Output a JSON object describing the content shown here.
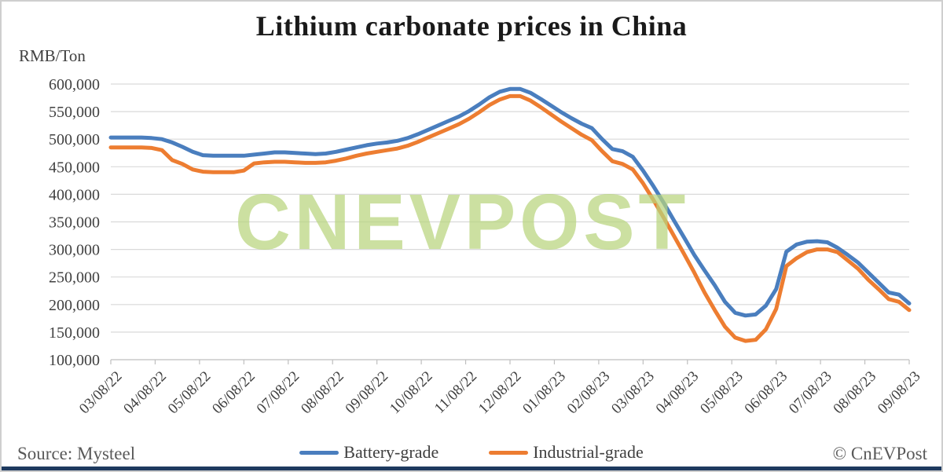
{
  "title": "Lithium carbonate prices in China",
  "y_axis_unit": "RMB/Ton",
  "watermark": "CNEVPOST",
  "source": "Source: Mysteel",
  "copyright": "© CnEVPost",
  "legend": [
    {
      "label": "Battery-grade",
      "color": "#4a7ebe"
    },
    {
      "label": "Industrial-grade",
      "color": "#ed7d31"
    }
  ],
  "colors": {
    "battery_line": "#4a7ebe",
    "industrial_line": "#ed7d31",
    "gridline": "#d9d9d9",
    "axis": "#bfbfbf",
    "watermark_green": "#b9d57e",
    "bottom_bar_navy": "#1e3a5f",
    "text_gray": "#404040"
  },
  "chart_data": {
    "type": "line",
    "title": "Lithium carbonate prices in China",
    "ylabel": "RMB/Ton",
    "xlabel": "",
    "grid": "horizontal",
    "legend_position": "bottom",
    "ylim": [
      100000,
      600000
    ],
    "y_tick_step": 50000,
    "y_tick_labels": [
      "600,000",
      "550,000",
      "500,000",
      "450,000",
      "400,000",
      "350,000",
      "300,000",
      "250,000",
      "200,000",
      "150,000",
      "100,000"
    ],
    "x_tick_labels": [
      "03/08/22",
      "04/08/22",
      "05/08/22",
      "06/08/22",
      "07/08/22",
      "08/08/22",
      "09/08/22",
      "10/08/22",
      "11/08/22",
      "12/08/22",
      "01/08/23",
      "02/08/23",
      "03/08/23",
      "04/08/23",
      "05/08/23",
      "06/08/23",
      "07/08/23",
      "08/08/23",
      "09/08/23"
    ],
    "x_frequency": "weekly",
    "series": [
      {
        "id": "battery-grade",
        "name": "Battery-grade",
        "color": "#4a7ebe",
        "values": [
          503000,
          503000,
          503000,
          503000,
          502000,
          500000,
          494000,
          486000,
          477000,
          471000,
          470000,
          470000,
          470000,
          470000,
          472000,
          474000,
          476000,
          476000,
          475000,
          474000,
          473000,
          474000,
          477000,
          481000,
          485000,
          489000,
          492000,
          494000,
          497000,
          502000,
          509000,
          517000,
          525000,
          533000,
          541000,
          551000,
          563000,
          576000,
          586000,
          591000,
          591000,
          584000,
          573000,
          561000,
          549000,
          538000,
          528000,
          520000,
          500000,
          482000,
          478000,
          468000,
          443000,
          415000,
          385000,
          353000,
          322000,
          290000,
          262000,
          235000,
          205000,
          185000,
          180000,
          182000,
          198000,
          228000,
          296000,
          309000,
          314000,
          315000,
          313000,
          303000,
          290000,
          276000,
          258000,
          240000,
          222000,
          218000,
          202000
        ]
      },
      {
        "id": "industrial-grade",
        "name": "Industrial-grade",
        "color": "#ed7d31",
        "values": [
          485000,
          485000,
          485000,
          485000,
          484000,
          480000,
          462000,
          455000,
          445000,
          441000,
          440000,
          440000,
          440000,
          443000,
          456000,
          458000,
          459000,
          459000,
          458000,
          457000,
          457000,
          458000,
          461000,
          465000,
          470000,
          474000,
          477000,
          480000,
          483000,
          488000,
          495000,
          503000,
          511000,
          519000,
          527000,
          537000,
          549000,
          562000,
          572000,
          578000,
          578000,
          570000,
          558000,
          545000,
          532000,
          520000,
          508000,
          498000,
          478000,
          460000,
          455000,
          445000,
          420000,
          390000,
          358000,
          325000,
          292000,
          258000,
          222000,
          190000,
          160000,
          140000,
          134000,
          136000,
          155000,
          192000,
          270000,
          284000,
          295000,
          300000,
          300000,
          295000,
          280000,
          265000,
          245000,
          228000,
          210000,
          205000,
          190000
        ]
      }
    ]
  }
}
